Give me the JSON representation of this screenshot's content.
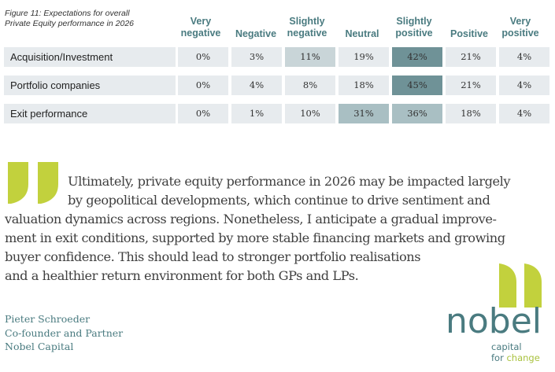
{
  "figure": {
    "caption_line1": "Figure 11: Expectations for overall",
    "caption_line2": "Private Equity performance in 2026"
  },
  "table": {
    "columns": [
      {
        "line1": "Very",
        "line2": "negative"
      },
      {
        "line1": "Negative",
        "line2": ""
      },
      {
        "line1": "Slightly",
        "line2": "negative"
      },
      {
        "line1": "Neutral",
        "line2": ""
      },
      {
        "line1": "Slightly",
        "line2": "positive"
      },
      {
        "line1": "Positive",
        "line2": ""
      },
      {
        "line1": "Very",
        "line2": "positive"
      }
    ],
    "rows": [
      {
        "label": "Acquisition/Investment",
        "values": [
          "0%",
          "3%",
          "11%",
          "19%",
          "42%",
          "21%",
          "4%"
        ]
      },
      {
        "label": "Portfolio companies",
        "values": [
          "0%",
          "4%",
          "8%",
          "18%",
          "45%",
          "21%",
          "4%"
        ]
      },
      {
        "label": "Exit performance",
        "values": [
          "0%",
          "1%",
          "10%",
          "31%",
          "36%",
          "18%",
          "4%"
        ]
      }
    ],
    "heat_colors": {
      "base": "#e7ebee",
      "light": "#c9d5d8",
      "medium": "#a9bfc3",
      "dark": "#6f9297"
    }
  },
  "quote": {
    "lines": [
      "Ultimately, private equity performance in 2026 may be impacted largely",
      "by geopolitical developments, which continue to drive sentiment and",
      "valuation dynamics across regions. Nonetheless, I anticipate a gradual improve-",
      "ment in exit conditions, supported by more stable financing markets and growing",
      "buyer confidence. This should lead to stronger portfolio realisations",
      "and a healthier return environment for both GPs and LPs."
    ],
    "mark_color": "#c2d13d",
    "text_color": "#3f3f3f"
  },
  "attribution": {
    "name": "Pieter Schroeder",
    "title": "Co-founder and Partner",
    "company": "Nobel Capital"
  },
  "logo": {
    "wordmark": "nobel",
    "tagline1": "capital",
    "tagline2_prefix": "for ",
    "tagline2_accent": "change",
    "brand_color": "#4a7b80",
    "accent_color": "#a9c23f"
  }
}
